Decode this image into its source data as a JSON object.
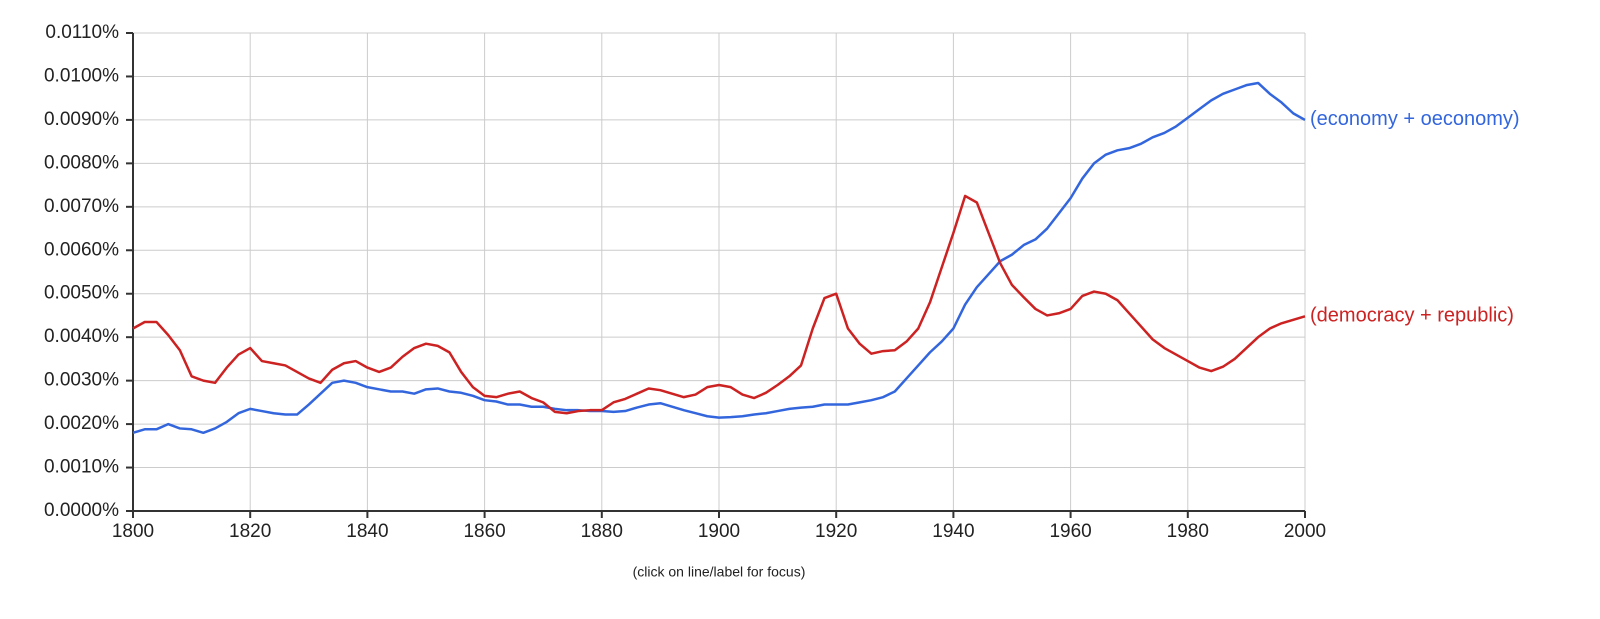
{
  "chart_data": {
    "type": "line",
    "annotation": "(click on line/label for focus)",
    "x": [
      1800,
      1802,
      1804,
      1806,
      1808,
      1810,
      1812,
      1814,
      1816,
      1818,
      1820,
      1822,
      1824,
      1826,
      1828,
      1830,
      1832,
      1834,
      1836,
      1838,
      1840,
      1842,
      1844,
      1846,
      1848,
      1850,
      1852,
      1854,
      1856,
      1858,
      1860,
      1862,
      1864,
      1866,
      1868,
      1870,
      1872,
      1874,
      1876,
      1878,
      1880,
      1882,
      1884,
      1886,
      1888,
      1890,
      1892,
      1894,
      1896,
      1898,
      1900,
      1902,
      1904,
      1906,
      1908,
      1910,
      1912,
      1914,
      1916,
      1918,
      1920,
      1922,
      1924,
      1926,
      1928,
      1930,
      1932,
      1934,
      1936,
      1938,
      1940,
      1942,
      1944,
      1946,
      1948,
      1950,
      1952,
      1954,
      1956,
      1958,
      1960,
      1962,
      1964,
      1966,
      1968,
      1970,
      1972,
      1974,
      1976,
      1978,
      1980,
      1982,
      1984,
      1986,
      1988,
      1990,
      1992,
      1994,
      1996,
      1998,
      2000
    ],
    "series": [
      {
        "name": "(economy + oeconomy)",
        "color": "#3366dd",
        "values": [
          0.0018,
          0.00188,
          0.00188,
          0.002,
          0.0019,
          0.00188,
          0.0018,
          0.0019,
          0.00205,
          0.00225,
          0.00235,
          0.0023,
          0.00225,
          0.00222,
          0.00222,
          0.00245,
          0.0027,
          0.00295,
          0.003,
          0.00295,
          0.00285,
          0.0028,
          0.00275,
          0.00275,
          0.0027,
          0.0028,
          0.00282,
          0.00275,
          0.00272,
          0.00265,
          0.00255,
          0.00252,
          0.00245,
          0.00245,
          0.0024,
          0.0024,
          0.00235,
          0.00232,
          0.00232,
          0.0023,
          0.0023,
          0.00228,
          0.0023,
          0.00238,
          0.00245,
          0.00248,
          0.0024,
          0.00232,
          0.00225,
          0.00218,
          0.00215,
          0.00216,
          0.00218,
          0.00222,
          0.00225,
          0.0023,
          0.00235,
          0.00238,
          0.0024,
          0.00245,
          0.00245,
          0.00245,
          0.0025,
          0.00255,
          0.00262,
          0.00275,
          0.00305,
          0.00335,
          0.00365,
          0.0039,
          0.0042,
          0.00475,
          0.00515,
          0.00545,
          0.00575,
          0.0059,
          0.00612,
          0.00625,
          0.0065,
          0.00685,
          0.0072,
          0.00765,
          0.008,
          0.0082,
          0.0083,
          0.00835,
          0.00845,
          0.0086,
          0.0087,
          0.00885,
          0.00905,
          0.00925,
          0.00945,
          0.0096,
          0.0097,
          0.0098,
          0.00985,
          0.0096,
          0.0094,
          0.00915,
          0.009
        ]
      },
      {
        "name": "(democracy + republic)",
        "color": "#cc2222",
        "values": [
          0.0042,
          0.00435,
          0.00435,
          0.00405,
          0.0037,
          0.0031,
          0.003,
          0.00295,
          0.0033,
          0.0036,
          0.00375,
          0.00345,
          0.0034,
          0.00335,
          0.0032,
          0.00305,
          0.00295,
          0.00325,
          0.0034,
          0.00345,
          0.0033,
          0.0032,
          0.0033,
          0.00355,
          0.00375,
          0.00385,
          0.0038,
          0.00365,
          0.0032,
          0.00285,
          0.00265,
          0.00262,
          0.0027,
          0.00275,
          0.0026,
          0.0025,
          0.00228,
          0.00225,
          0.0023,
          0.00232,
          0.00232,
          0.0025,
          0.00258,
          0.0027,
          0.00282,
          0.00278,
          0.0027,
          0.00262,
          0.00268,
          0.00285,
          0.0029,
          0.00285,
          0.00268,
          0.0026,
          0.00272,
          0.0029,
          0.0031,
          0.00335,
          0.0042,
          0.0049,
          0.005,
          0.0042,
          0.00385,
          0.00362,
          0.00368,
          0.0037,
          0.0039,
          0.0042,
          0.0048,
          0.0056,
          0.0064,
          0.00725,
          0.0071,
          0.0064,
          0.0057,
          0.0052,
          0.00492,
          0.00465,
          0.0045,
          0.00455,
          0.00465,
          0.00495,
          0.00505,
          0.005,
          0.00485,
          0.00455,
          0.00425,
          0.00395,
          0.00375,
          0.0036,
          0.00345,
          0.0033,
          0.00322,
          0.00332,
          0.0035,
          0.00375,
          0.004,
          0.0042,
          0.00432,
          0.0044,
          0.00448
        ]
      }
    ],
    "xlim": [
      1800,
      2000
    ],
    "xticks": [
      1800,
      1820,
      1840,
      1860,
      1880,
      1900,
      1920,
      1940,
      1960,
      1980,
      2000
    ],
    "ylim": [
      0,
      0.011
    ],
    "yticks": [
      {
        "value": 0,
        "label": "0.0000%"
      },
      {
        "value": 0.001,
        "label": "0.0010%"
      },
      {
        "value": 0.002,
        "label": "0.0020%"
      },
      {
        "value": 0.003,
        "label": "0.0030%"
      },
      {
        "value": 0.004,
        "label": "0.0040%"
      },
      {
        "value": 0.005,
        "label": "0.0050%"
      },
      {
        "value": 0.006,
        "label": "0.0060%"
      },
      {
        "value": 0.007,
        "label": "0.0070%"
      },
      {
        "value": 0.008,
        "label": "0.0080%"
      },
      {
        "value": 0.009,
        "label": "0.0090%"
      },
      {
        "value": 0.01,
        "label": "0.0100%"
      },
      {
        "value": 0.011,
        "label": "0.0110%"
      }
    ],
    "grid": true
  }
}
